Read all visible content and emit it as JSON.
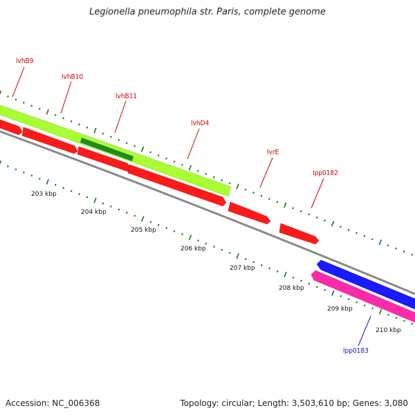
{
  "title": "Legionella pneumophila str. Paris, complete genome",
  "footer": {
    "accession": "Accession: NC_006368",
    "stats": "Topology: circular; Length: 3,503,610 bp; Genes: 3,080"
  },
  "colors": {
    "lime": "#aaff33",
    "dark_green": "#228822",
    "red": "#ff1a1a",
    "blue": "#1a1aff",
    "magenta": "#ff2aaa",
    "backbone": "#888888",
    "tick": "#117711",
    "label_red": "#cc0000",
    "label_blue": "#1111cc"
  },
  "gene_labels": [
    {
      "name": "lvhB9",
      "strand": "forward"
    },
    {
      "name": "lvhB10",
      "strand": "forward"
    },
    {
      "name": "lvhB11",
      "strand": "forward"
    },
    {
      "name": "lvhD4",
      "strand": "forward"
    },
    {
      "name": "lvrE",
      "strand": "forward"
    },
    {
      "name": "lpp0182",
      "strand": "forward"
    },
    {
      "name": "lpp0183",
      "strand": "reverse"
    }
  ],
  "scale_labels": [
    "203 kbp",
    "204 kbp",
    "205 kbp",
    "206 kbp",
    "207 kbp",
    "208 kbp",
    "209 kbp",
    "210 kbp"
  ]
}
